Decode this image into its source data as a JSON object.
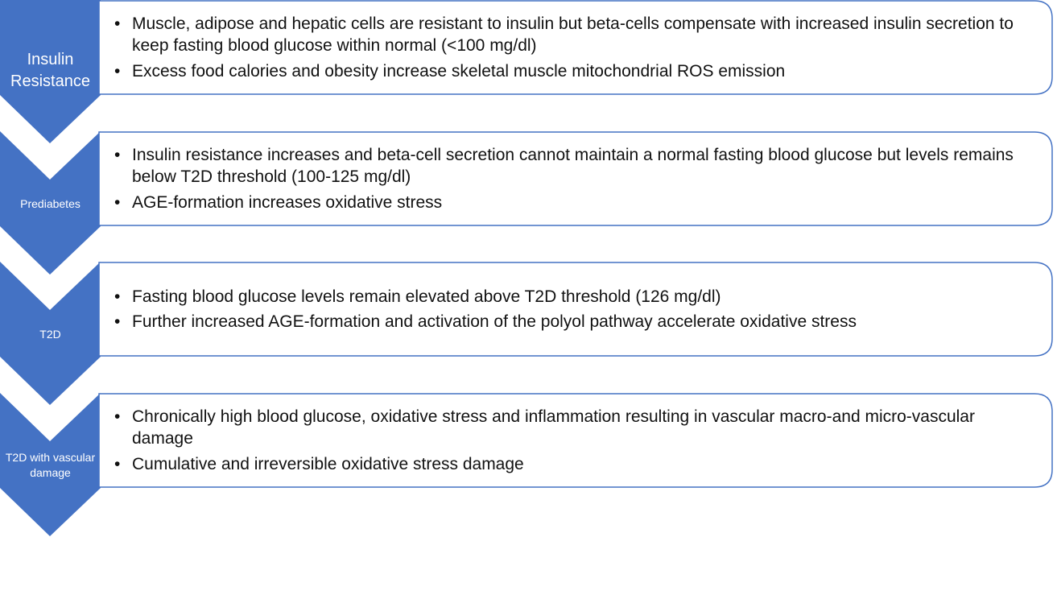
{
  "stages": [
    {
      "label": "Insulin Resistance",
      "bullets": [
        "Muscle, adipose and hepatic cells are resistant to insulin but beta-cells compensate with increased insulin secretion to keep fasting blood glucose within normal (<100 mg/dl)",
        "Excess food calories and obesity increase skeletal muscle mitochondrial ROS emission"
      ]
    },
    {
      "label": "Prediabetes",
      "bullets": [
        "Insulin resistance increases and beta-cell secretion cannot maintain a normal fasting blood glucose but levels remains below T2D threshold (100-125 mg/dl)",
        "AGE-formation increases oxidative stress"
      ]
    },
    {
      "label": "T2D",
      "bullets": [
        "Fasting blood glucose levels remain elevated above T2D threshold (126 mg/dl)",
        "Further increased AGE-formation and activation of the polyol pathway accelerate oxidative stress"
      ]
    },
    {
      "label": "T2D with vascular damage",
      "bullets": [
        "Chronically high blood glucose, oxidative stress and inflammation resulting in vascular macro-and micro-vascular damage",
        "Cumulative and irreversible oxidative stress damage"
      ]
    }
  ]
}
